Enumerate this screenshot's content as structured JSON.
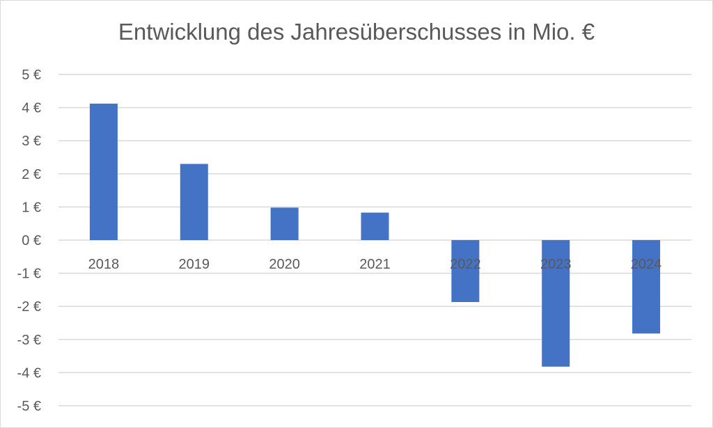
{
  "chart_data": {
    "type": "bar",
    "title": "Entwicklung des Jahresüberschusses in Mio. €",
    "categories": [
      "2018",
      "2019",
      "2020",
      "2021",
      "2022",
      "2023",
      "2024"
    ],
    "values": [
      4.12,
      2.3,
      0.98,
      0.83,
      -1.87,
      -3.82,
      -2.82
    ],
    "ylim": [
      -5,
      5
    ],
    "yticks": [
      5,
      4,
      3,
      2,
      1,
      0,
      -1,
      -2,
      -3,
      -4,
      -5
    ],
    "ytick_labels": [
      "5 €",
      "4 €",
      "3 €",
      "2 €",
      "1 €",
      "0 €",
      "-1 €",
      "-2 €",
      "-3 €",
      "-4 €",
      "-5 €"
    ],
    "xlabel": "",
    "ylabel": "",
    "grid": true,
    "legend": "none",
    "bar_color": "#4472c4",
    "grid_color": "#d9d9d9"
  }
}
